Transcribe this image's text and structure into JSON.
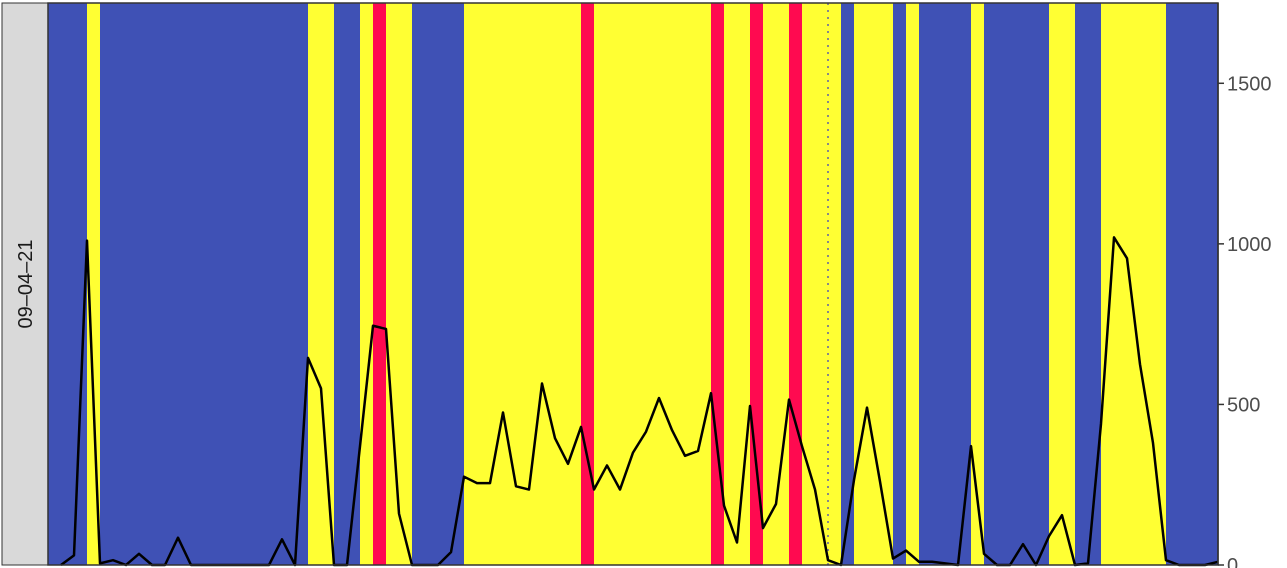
{
  "chart_data": {
    "type": "line",
    "facet_label": "09–04–21",
    "y_axis_position": "right",
    "ylim": [
      0,
      1750
    ],
    "y_ticks": [
      0,
      500,
      1000,
      1500
    ],
    "y_tick_labels": [
      "0",
      "500",
      "1000",
      "1500"
    ],
    "x_range": [
      0,
      90
    ],
    "grid": false,
    "reference_line": {
      "x": 60,
      "style": "dotted",
      "color": "#888888"
    },
    "colors": {
      "blue": "#3f51b5",
      "yellow": "#ffff33",
      "red": "#ff0a50",
      "line": "#000000",
      "strip_fill": "#d9d9d9"
    },
    "bands": [
      {
        "start": 0,
        "end": 3,
        "category": "blue"
      },
      {
        "start": 3,
        "end": 4,
        "category": "yellow"
      },
      {
        "start": 4,
        "end": 20,
        "category": "blue"
      },
      {
        "start": 20,
        "end": 22,
        "category": "yellow"
      },
      {
        "start": 22,
        "end": 24,
        "category": "blue"
      },
      {
        "start": 24,
        "end": 25,
        "category": "yellow"
      },
      {
        "start": 25,
        "end": 26,
        "category": "red"
      },
      {
        "start": 26,
        "end": 28,
        "category": "yellow"
      },
      {
        "start": 28,
        "end": 32,
        "category": "blue"
      },
      {
        "start": 32,
        "end": 41,
        "category": "yellow"
      },
      {
        "start": 41,
        "end": 42,
        "category": "red"
      },
      {
        "start": 42,
        "end": 51,
        "category": "yellow"
      },
      {
        "start": 51,
        "end": 52,
        "category": "red"
      },
      {
        "start": 52,
        "end": 54,
        "category": "yellow"
      },
      {
        "start": 54,
        "end": 55,
        "category": "red"
      },
      {
        "start": 55,
        "end": 57,
        "category": "yellow"
      },
      {
        "start": 57,
        "end": 58,
        "category": "red"
      },
      {
        "start": 58,
        "end": 61,
        "category": "yellow"
      },
      {
        "start": 61,
        "end": 62,
        "category": "blue"
      },
      {
        "start": 62,
        "end": 65,
        "category": "yellow"
      },
      {
        "start": 65,
        "end": 66,
        "category": "blue"
      },
      {
        "start": 66,
        "end": 67,
        "category": "yellow"
      },
      {
        "start": 67,
        "end": 71,
        "category": "blue"
      },
      {
        "start": 71,
        "end": 72,
        "category": "yellow"
      },
      {
        "start": 72,
        "end": 77,
        "category": "blue"
      },
      {
        "start": 77,
        "end": 79,
        "category": "yellow"
      },
      {
        "start": 79,
        "end": 81,
        "category": "blue"
      },
      {
        "start": 81,
        "end": 86,
        "category": "yellow"
      },
      {
        "start": 86,
        "end": 90,
        "category": "blue"
      }
    ],
    "x": [
      1,
      2,
      3,
      4,
      5,
      6,
      7,
      8,
      9,
      10,
      11,
      12,
      13,
      14,
      15,
      16,
      17,
      18,
      19,
      20,
      21,
      22,
      23,
      24,
      25,
      26,
      27,
      28,
      29,
      30,
      31,
      32,
      33,
      34,
      35,
      36,
      37,
      38,
      39,
      40,
      41,
      42,
      43,
      44,
      45,
      46,
      47,
      48,
      49,
      50,
      51,
      52,
      53,
      54,
      55,
      56,
      57,
      58,
      59,
      60,
      61,
      62,
      63,
      64,
      65,
      66,
      67,
      68,
      69,
      70,
      71,
      72,
      73,
      74,
      75,
      76,
      77,
      78,
      79,
      80,
      81,
      82,
      83,
      84,
      85,
      86,
      87,
      88,
      89,
      90
    ],
    "y": [
      0,
      30,
      1010,
      5,
      15,
      0,
      35,
      0,
      0,
      85,
      0,
      0,
      0,
      0,
      0,
      0,
      0,
      80,
      0,
      645,
      550,
      0,
      0,
      370,
      745,
      735,
      160,
      0,
      0,
      0,
      40,
      275,
      255,
      255,
      475,
      245,
      235,
      565,
      395,
      315,
      430,
      235,
      310,
      235,
      350,
      415,
      520,
      420,
      340,
      355,
      535,
      185,
      70,
      495,
      115,
      190,
      515,
      370,
      235,
      15,
      0,
      265,
      490,
      260,
      20,
      45,
      10,
      10,
      5,
      0,
      370,
      35,
      0,
      0,
      65,
      0,
      90,
      155,
      0,
      5,
      440,
      1020,
      955,
      625,
      380,
      15,
      0,
      0,
      0,
      10
    ]
  }
}
